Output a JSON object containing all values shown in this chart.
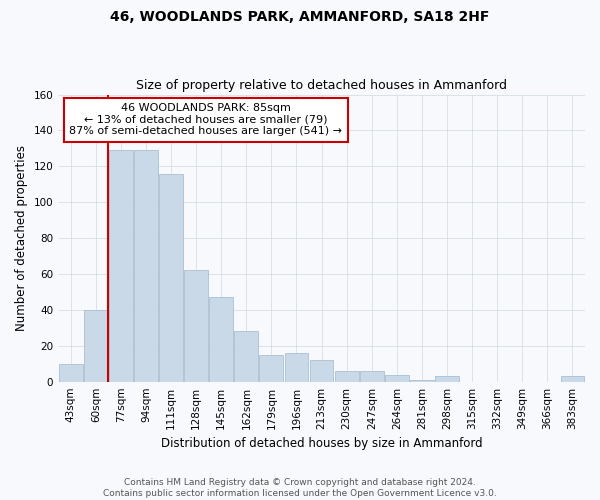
{
  "title": "46, WOODLANDS PARK, AMMANFORD, SA18 2HF",
  "subtitle": "Size of property relative to detached houses in Ammanford",
  "xlabel": "Distribution of detached houses by size in Ammanford",
  "ylabel": "Number of detached properties",
  "categories": [
    "43sqm",
    "60sqm",
    "77sqm",
    "94sqm",
    "111sqm",
    "128sqm",
    "145sqm",
    "162sqm",
    "179sqm",
    "196sqm",
    "213sqm",
    "230sqm",
    "247sqm",
    "264sqm",
    "281sqm",
    "298sqm",
    "315sqm",
    "332sqm",
    "349sqm",
    "366sqm",
    "383sqm"
  ],
  "values": [
    10,
    40,
    129,
    129,
    116,
    62,
    47,
    28,
    15,
    16,
    12,
    6,
    6,
    4,
    1,
    3,
    0,
    0,
    0,
    0,
    3
  ],
  "bar_color": "#c9d9e8",
  "bar_edge_color": "#a0b8cc",
  "red_line_index": 2,
  "annotation_text": "46 WOODLANDS PARK: 85sqm\n← 13% of detached houses are smaller (79)\n87% of semi-detached houses are larger (541) →",
  "annotation_box_color": "white",
  "annotation_box_edge_color": "#cc0000",
  "red_line_color": "#cc0000",
  "ylim": [
    0,
    160
  ],
  "yticks": [
    0,
    20,
    40,
    60,
    80,
    100,
    120,
    140,
    160
  ],
  "footer_line1": "Contains HM Land Registry data © Crown copyright and database right 2024.",
  "footer_line2": "Contains public sector information licensed under the Open Government Licence v3.0.",
  "title_fontsize": 10,
  "subtitle_fontsize": 9,
  "xlabel_fontsize": 8.5,
  "ylabel_fontsize": 8.5,
  "tick_fontsize": 7.5,
  "annotation_fontsize": 8,
  "footer_fontsize": 6.5,
  "grid_color": "#d0d8e0",
  "background_color": "#f7f9fc"
}
